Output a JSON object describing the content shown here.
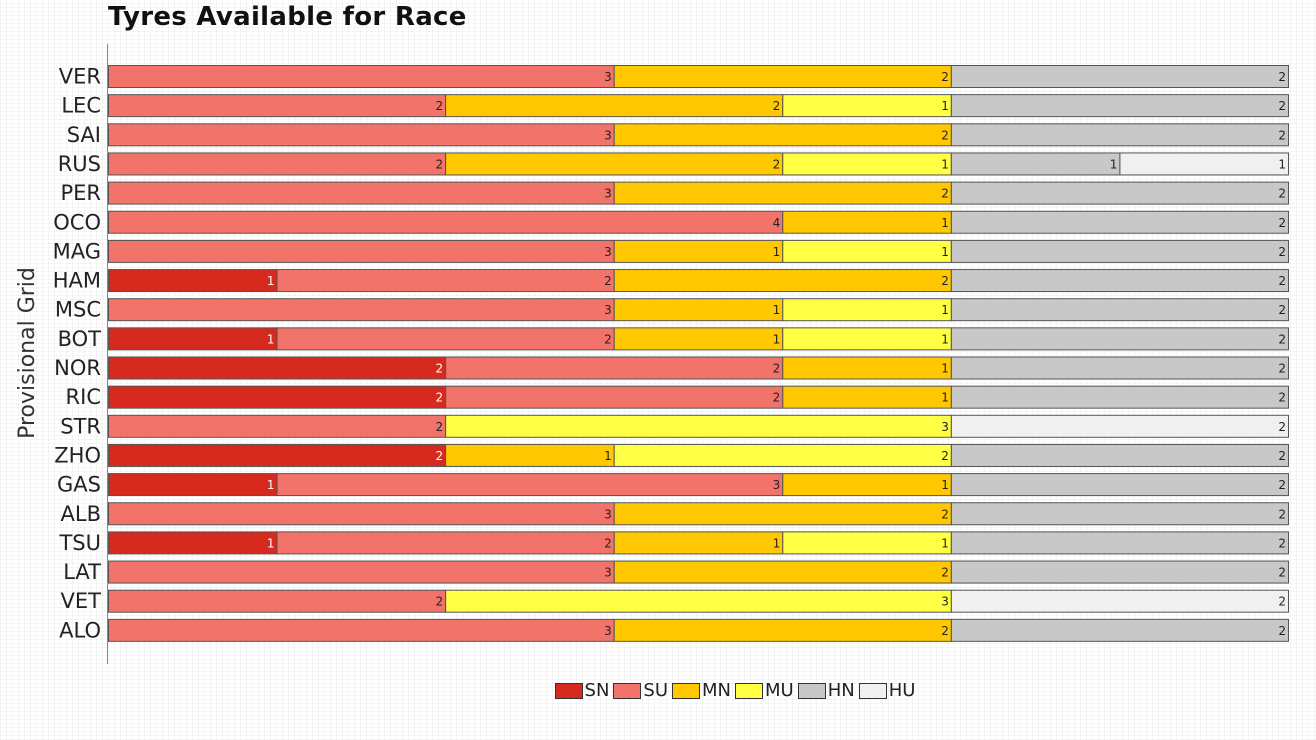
{
  "chart_data": {
    "type": "bar",
    "orientation": "horizontal",
    "stacked": true,
    "title": "Tyres Available for Race",
    "ylabel": "Provisional Grid",
    "xlabel": "",
    "categories": [
      "VER",
      "LEC",
      "SAI",
      "RUS",
      "PER",
      "OCO",
      "MAG",
      "HAM",
      "MSC",
      "BOT",
      "NOR",
      "RIC",
      "STR",
      "ZHO",
      "GAS",
      "ALB",
      "TSU",
      "LAT",
      "VET",
      "ALO"
    ],
    "series": [
      {
        "name": "SN",
        "color": "#d62a1e",
        "values": [
          0,
          0,
          0,
          0,
          0,
          0,
          0,
          1,
          0,
          1,
          2,
          2,
          0,
          2,
          1,
          0,
          1,
          0,
          0,
          0
        ]
      },
      {
        "name": "SU",
        "color": "#f1736a",
        "values": [
          3,
          2,
          3,
          2,
          3,
          4,
          3,
          2,
          3,
          2,
          2,
          2,
          2,
          0,
          3,
          3,
          2,
          3,
          2,
          3
        ]
      },
      {
        "name": "MN",
        "color": "#ffc800",
        "values": [
          2,
          2,
          2,
          2,
          2,
          1,
          1,
          2,
          1,
          1,
          1,
          1,
          0,
          1,
          1,
          2,
          1,
          2,
          0,
          2
        ]
      },
      {
        "name": "MU",
        "color": "#ffff44",
        "values": [
          0,
          1,
          0,
          1,
          0,
          0,
          1,
          0,
          1,
          1,
          0,
          0,
          3,
          2,
          0,
          0,
          1,
          0,
          3,
          0
        ]
      },
      {
        "name": "HN",
        "color": "#c8c8c8",
        "values": [
          2,
          2,
          2,
          1,
          2,
          2,
          2,
          2,
          2,
          2,
          2,
          2,
          0,
          2,
          2,
          2,
          2,
          2,
          0,
          2
        ]
      },
      {
        "name": "HU",
        "color": "#f0f0f0",
        "values": [
          0,
          0,
          0,
          1,
          0,
          0,
          0,
          0,
          0,
          0,
          0,
          0,
          2,
          0,
          0,
          0,
          0,
          0,
          2,
          0
        ]
      }
    ],
    "xlim": [
      0,
      7
    ],
    "grid": false,
    "legend_position": "bottom-center"
  }
}
